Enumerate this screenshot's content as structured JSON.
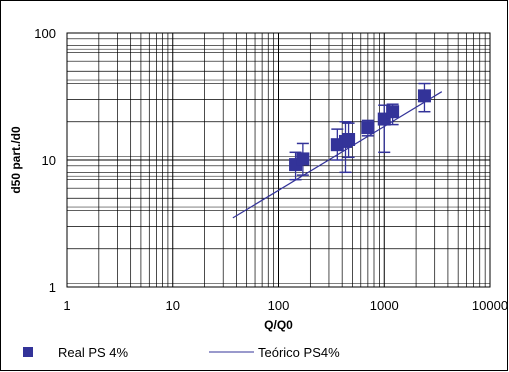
{
  "chart_data": {
    "type": "scatter",
    "x_scale": "log",
    "y_scale": "log",
    "xlabel": "Q/Q0",
    "ylabel": "d50 part./d0",
    "xlim": [
      1,
      10000
    ],
    "ylim": [
      1,
      100
    ],
    "x_tick_labels": [
      "1",
      "10",
      "100",
      "1000",
      "10000"
    ],
    "y_tick_labels": [
      "1",
      "10",
      "100"
    ],
    "grid": true,
    "legend_position": "bottom",
    "series": [
      {
        "name": "Real PS 4%",
        "kind": "points-with-error-bars",
        "color": "#333399",
        "points": [
          {
            "x": 145,
            "y": 9.2,
            "y_low": 7.0,
            "y_high": 11.5
          },
          {
            "x": 170,
            "y": 10.2,
            "y_low": 7.6,
            "y_high": 13.5
          },
          {
            "x": 360,
            "y": 13.2,
            "y_low": 10.0,
            "y_high": 17.5
          },
          {
            "x": 430,
            "y": 14.0,
            "y_low": 8.0,
            "y_high": 20.0
          },
          {
            "x": 460,
            "y": 14.5,
            "y_low": 10.5,
            "y_high": 19.5
          },
          {
            "x": 700,
            "y": 18.0,
            "y_low": 15.5,
            "y_high": 20.5
          },
          {
            "x": 1000,
            "y": 21.0,
            "y_low": 11.5,
            "y_high": 27.0
          },
          {
            "x": 1200,
            "y": 24.0,
            "y_low": 19.0,
            "y_high": 27.5
          },
          {
            "x": 2400,
            "y": 32.0,
            "y_low": 24.0,
            "y_high": 40.0
          }
        ]
      },
      {
        "name": "Teórico PS4%",
        "kind": "line",
        "color": "#333399",
        "x": [
          37,
          3500
        ],
        "y": [
          3.5,
          34.5
        ]
      }
    ]
  }
}
